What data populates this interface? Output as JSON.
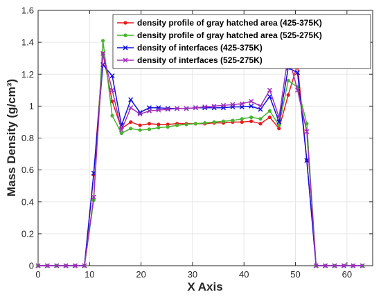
{
  "chart_data": {
    "type": "line",
    "title": "",
    "xlabel": "X Axis",
    "ylabel": "Mass Density (g/cm³)",
    "xlim": [
      0,
      65
    ],
    "ylim": [
      0,
      1.6
    ],
    "xticks": [
      "0",
      "10",
      "20",
      "30",
      "40",
      "50",
      "60"
    ],
    "yticks": [
      "0",
      "0.2",
      "0.4",
      "0.6",
      "0.8",
      "1",
      "1.2",
      "1.4",
      "1.6"
    ],
    "grid": true,
    "legend_position": "top-right",
    "series": [
      {
        "name": "density profile of gray hatched area (425-375K)",
        "color": "#e8191c",
        "marker": "dot",
        "points": [
          [
            0,
            0
          ],
          [
            1.8,
            0
          ],
          [
            3.6,
            0
          ],
          [
            5.4,
            0
          ],
          [
            7.2,
            0
          ],
          [
            9.0,
            0
          ],
          [
            10.8,
            0.57
          ],
          [
            12.6,
            1.33
          ],
          [
            14.4,
            1.03
          ],
          [
            16.2,
            0.86
          ],
          [
            18.0,
            0.9
          ],
          [
            19.8,
            0.88
          ],
          [
            21.6,
            0.89
          ],
          [
            23.4,
            0.885
          ],
          [
            25.2,
            0.885
          ],
          [
            27.0,
            0.89
          ],
          [
            28.8,
            0.89
          ],
          [
            30.6,
            0.89
          ],
          [
            32.4,
            0.89
          ],
          [
            34.2,
            0.895
          ],
          [
            36.0,
            0.895
          ],
          [
            37.8,
            0.9
          ],
          [
            39.6,
            0.9
          ],
          [
            41.4,
            0.905
          ],
          [
            43.2,
            0.89
          ],
          [
            45.0,
            0.93
          ],
          [
            46.8,
            0.86
          ],
          [
            48.6,
            1.07
          ],
          [
            50.4,
            1.26
          ],
          [
            52.2,
            0.66
          ],
          [
            54.0,
            0
          ],
          [
            55.8,
            0
          ],
          [
            57.6,
            0
          ],
          [
            59.4,
            0
          ],
          [
            61.2,
            0
          ],
          [
            63.0,
            0
          ]
        ]
      },
      {
        "name": "density profile of gray hatched area (525-275K)",
        "color": "#46b42d",
        "marker": "dot",
        "points": [
          [
            0,
            0
          ],
          [
            1.8,
            0
          ],
          [
            3.6,
            0
          ],
          [
            5.4,
            0
          ],
          [
            7.2,
            0
          ],
          [
            9.0,
            0
          ],
          [
            10.8,
            0.41
          ],
          [
            12.6,
            1.41
          ],
          [
            14.4,
            0.94
          ],
          [
            16.2,
            0.83
          ],
          [
            18.0,
            0.86
          ],
          [
            19.8,
            0.85
          ],
          [
            21.6,
            0.855
          ],
          [
            23.4,
            0.865
          ],
          [
            25.2,
            0.87
          ],
          [
            27.0,
            0.88
          ],
          [
            28.8,
            0.885
          ],
          [
            30.6,
            0.89
          ],
          [
            32.4,
            0.895
          ],
          [
            34.2,
            0.9
          ],
          [
            36.0,
            0.905
          ],
          [
            37.8,
            0.91
          ],
          [
            39.6,
            0.92
          ],
          [
            41.4,
            0.93
          ],
          [
            43.2,
            0.92
          ],
          [
            45.0,
            0.97
          ],
          [
            46.8,
            0.88
          ],
          [
            48.6,
            1.16
          ],
          [
            50.4,
            1.12
          ],
          [
            52.2,
            0.89
          ],
          [
            54.0,
            0
          ],
          [
            55.8,
            0
          ],
          [
            57.6,
            0
          ],
          [
            59.4,
            0
          ],
          [
            61.2,
            0
          ],
          [
            63.0,
            0
          ]
        ]
      },
      {
        "name": "density of interfaces (425-375K)",
        "color": "#1010e0",
        "marker": "x",
        "points": [
          [
            0,
            0
          ],
          [
            1.8,
            0
          ],
          [
            3.6,
            0
          ],
          [
            5.4,
            0
          ],
          [
            7.2,
            0
          ],
          [
            9.0,
            0
          ],
          [
            10.8,
            0.58
          ],
          [
            12.6,
            1.26
          ],
          [
            14.4,
            1.19
          ],
          [
            16.2,
            0.88
          ],
          [
            18.0,
            1.04
          ],
          [
            19.8,
            0.96
          ],
          [
            21.6,
            0.99
          ],
          [
            23.4,
            0.99
          ],
          [
            25.2,
            0.985
          ],
          [
            27.0,
            0.985
          ],
          [
            28.8,
            0.985
          ],
          [
            30.6,
            0.99
          ],
          [
            32.4,
            0.99
          ],
          [
            34.2,
            0.99
          ],
          [
            36.0,
            0.99
          ],
          [
            37.8,
            0.995
          ],
          [
            39.6,
            0.995
          ],
          [
            41.4,
            1.0
          ],
          [
            43.2,
            0.98
          ],
          [
            45.0,
            1.06
          ],
          [
            46.8,
            0.9
          ],
          [
            48.6,
            1.24
          ],
          [
            50.4,
            1.21
          ],
          [
            52.2,
            0.66
          ],
          [
            54.0,
            0
          ],
          [
            55.8,
            0
          ],
          [
            57.6,
            0
          ],
          [
            59.4,
            0
          ],
          [
            61.2,
            0
          ],
          [
            63.0,
            0
          ]
        ]
      },
      {
        "name": "density of interfaces (525-275K)",
        "color": "#a02fb8",
        "marker": "x",
        "points": [
          [
            0,
            0
          ],
          [
            1.8,
            0
          ],
          [
            3.6,
            0
          ],
          [
            5.4,
            0
          ],
          [
            7.2,
            0
          ],
          [
            9.0,
            0
          ],
          [
            10.8,
            0.43
          ],
          [
            12.6,
            1.33
          ],
          [
            14.4,
            1.1
          ],
          [
            16.2,
            0.85
          ],
          [
            18.0,
            0.99
          ],
          [
            19.8,
            0.95
          ],
          [
            21.6,
            0.97
          ],
          [
            23.4,
            0.975
          ],
          [
            25.2,
            0.98
          ],
          [
            27.0,
            0.985
          ],
          [
            28.8,
            0.985
          ],
          [
            30.6,
            0.99
          ],
          [
            32.4,
            0.995
          ],
          [
            34.2,
            1.0
          ],
          [
            36.0,
            1.005
          ],
          [
            37.8,
            1.01
          ],
          [
            39.6,
            1.015
          ],
          [
            41.4,
            1.03
          ],
          [
            43.2,
            1.0
          ],
          [
            45.0,
            1.1
          ],
          [
            46.8,
            0.93
          ],
          [
            48.6,
            1.32
          ],
          [
            50.4,
            1.1
          ],
          [
            52.2,
            0.84
          ],
          [
            54.0,
            0
          ],
          [
            55.8,
            0
          ],
          [
            57.6,
            0
          ],
          [
            59.4,
            0
          ],
          [
            61.2,
            0
          ],
          [
            63.0,
            0
          ]
        ]
      }
    ]
  }
}
